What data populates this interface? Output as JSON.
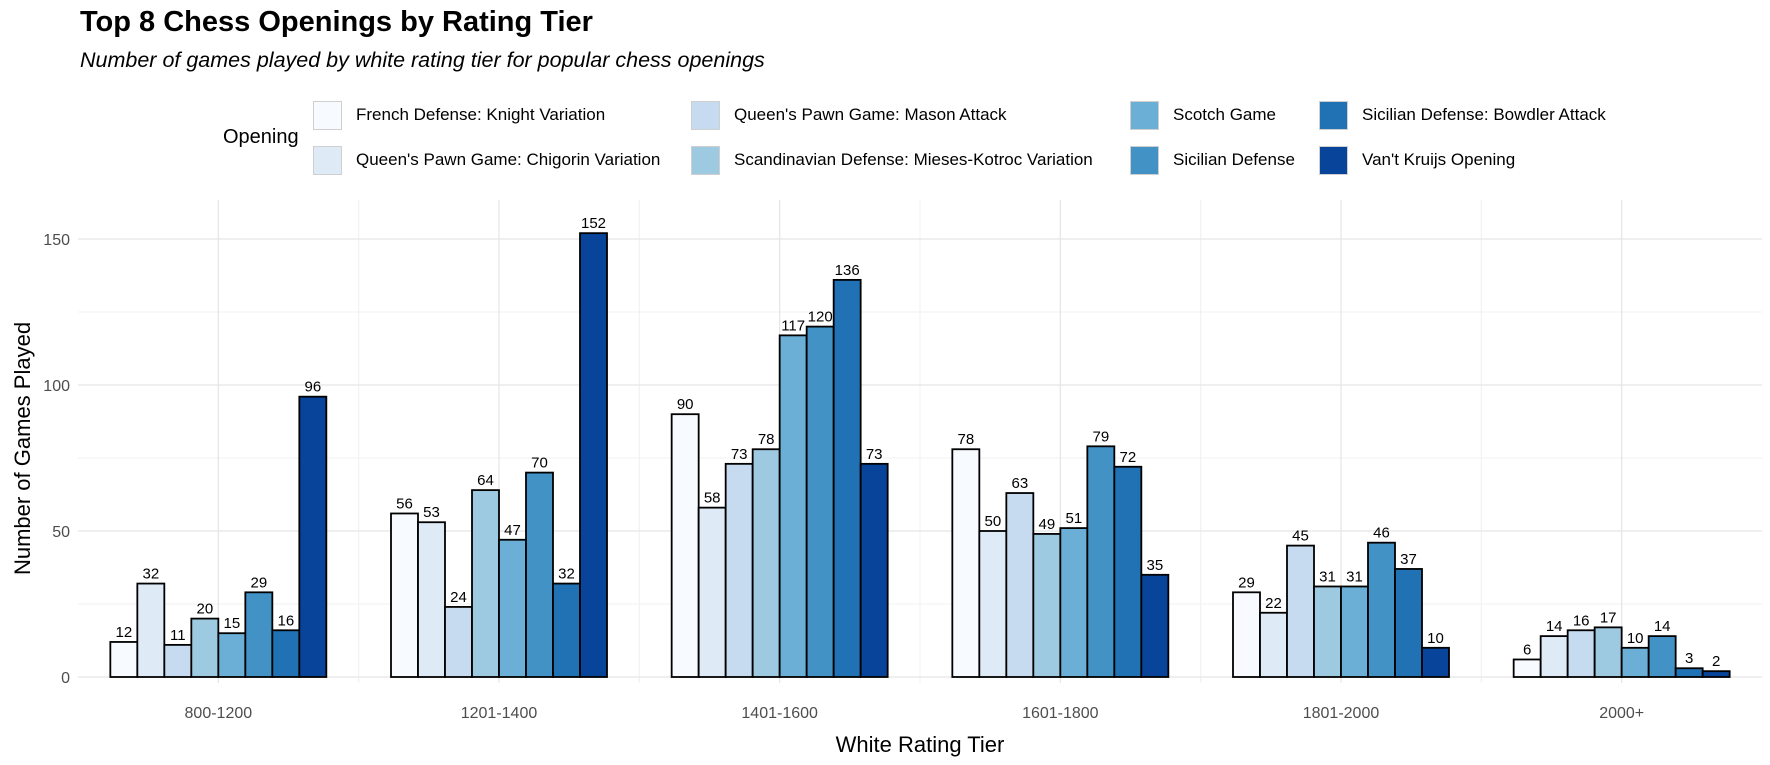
{
  "chart_data": {
    "type": "bar",
    "title": "Top 8 Chess Openings by Rating Tier",
    "subtitle": "Number of games played by white rating tier for popular chess openings",
    "xlabel": "White Rating Tier",
    "ylabel": "Number of Games Played",
    "legend_title": "Opening",
    "legend_position": "top",
    "grid": true,
    "ylim": [
      0,
      160
    ],
    "yticks": [
      0,
      50,
      100,
      150
    ],
    "categories": [
      "800-1200",
      "1201-1400",
      "1401-1600",
      "1601-1800",
      "1801-2000",
      "2000+"
    ],
    "series": [
      {
        "name": "French Defense: Knight Variation",
        "color": "#f7fbff",
        "values": [
          12,
          56,
          90,
          78,
          29,
          6
        ]
      },
      {
        "name": "Queen's Pawn Game: Chigorin Variation",
        "color": "#deebf7",
        "values": [
          32,
          53,
          58,
          50,
          22,
          14
        ]
      },
      {
        "name": "Queen's Pawn Game: Mason Attack",
        "color": "#c6dbef",
        "values": [
          11,
          24,
          73,
          63,
          45,
          16
        ]
      },
      {
        "name": "Scandinavian Defense: Mieses-Kotroc Variation",
        "color": "#9ecae1",
        "values": [
          20,
          64,
          78,
          49,
          31,
          17
        ]
      },
      {
        "name": "Scotch Game",
        "color": "#6baed6",
        "values": [
          15,
          47,
          117,
          51,
          31,
          10
        ]
      },
      {
        "name": "Sicilian Defense",
        "color": "#4292c6",
        "values": [
          29,
          70,
          120,
          79,
          46,
          14
        ]
      },
      {
        "name": "Sicilian Defense: Bowdler Attack",
        "color": "#2171b5",
        "values": [
          16,
          32,
          136,
          72,
          37,
          3
        ]
      },
      {
        "name": "Van't Kruijs Opening",
        "color": "#08459a",
        "values": [
          96,
          152,
          73,
          35,
          10,
          2
        ]
      }
    ]
  }
}
